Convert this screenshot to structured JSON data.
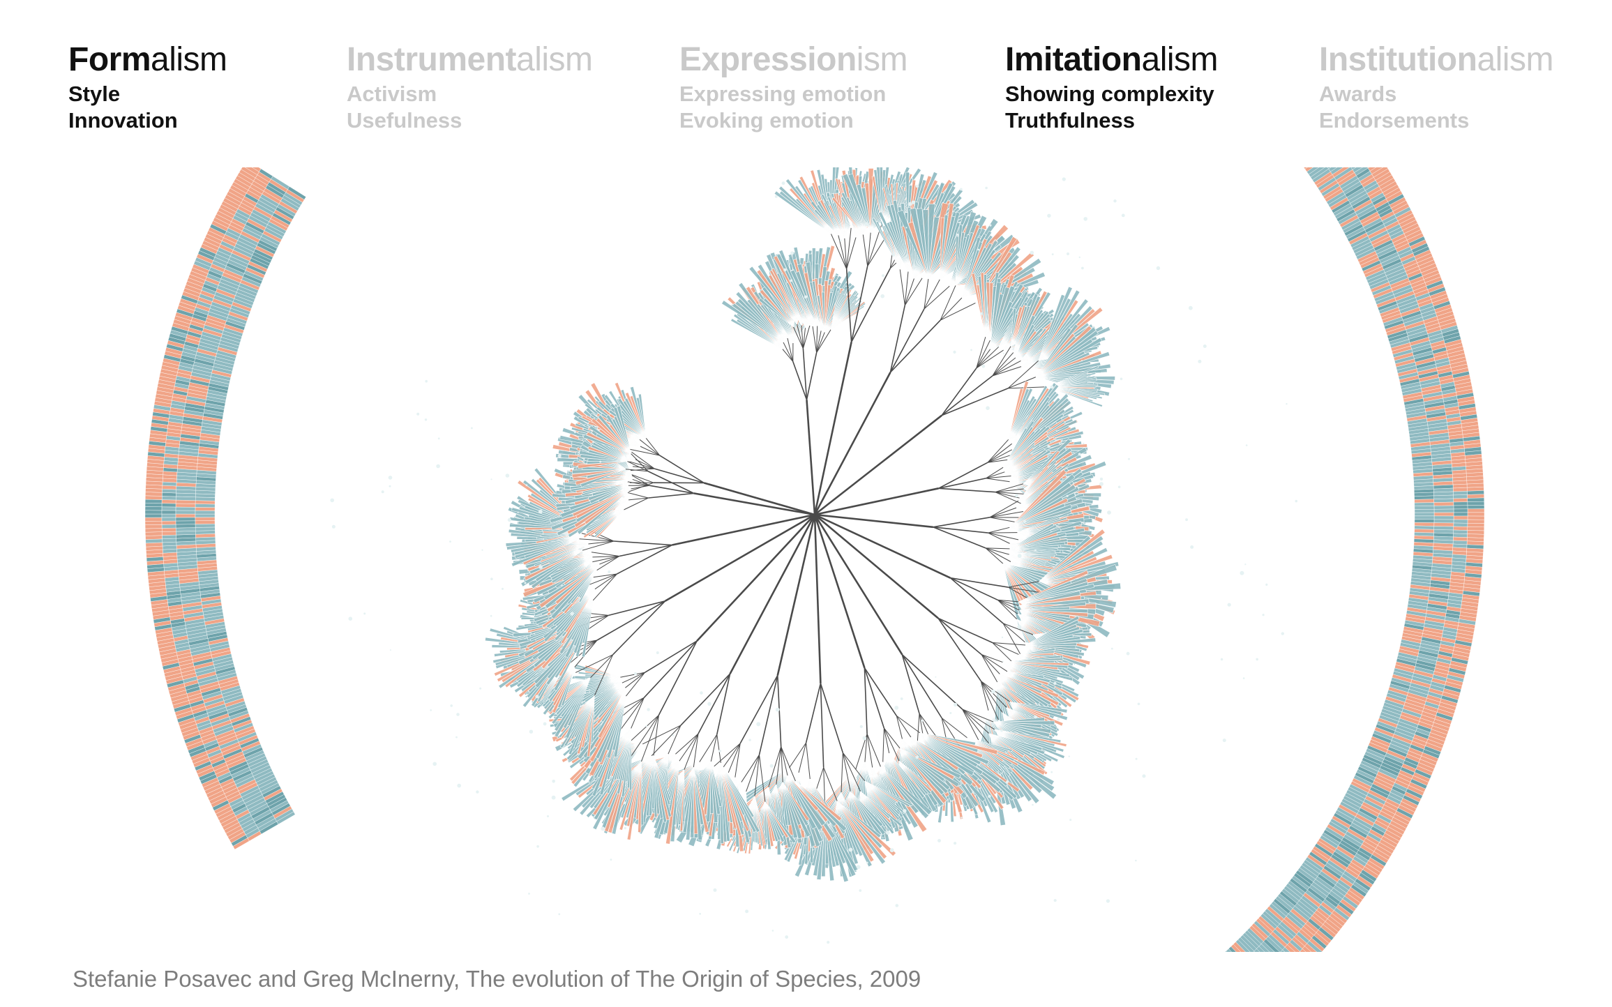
{
  "header": {
    "columns": [
      {
        "bold": "Form",
        "rest": "alism",
        "items": [
          "Style",
          "Innovation"
        ],
        "state": "active"
      },
      {
        "bold": "Instrument",
        "rest": "alism",
        "items": [
          "Activism",
          "Usefulness"
        ],
        "state": "inactive"
      },
      {
        "bold": "Expression",
        "rest": "ism",
        "items": [
          "Expressing emotion",
          "Evoking emotion"
        ],
        "state": "inactive"
      },
      {
        "bold": "Imitation",
        "rest": "alism",
        "items": [
          "Showing complexity",
          "Truthfulness"
        ],
        "state": "active"
      },
      {
        "bold": "Institution",
        "rest": "alism",
        "items": [
          "Awards",
          "Endorsements"
        ],
        "state": "inactive"
      }
    ]
  },
  "colors": {
    "active_text": "#111111",
    "inactive_text": "#c9c9c9",
    "teal": "#8fbac1",
    "teal_dark": "#6ea3ab",
    "salmon": "#f0a487",
    "branch": "#4a4a4a",
    "caption": "#7d7d7d"
  },
  "artwork": {
    "description_icon": "radial-tree-figure"
  },
  "caption": "Stefanie Posavec and Greg McInerny, The evolution of The Origin of Species, 2009"
}
